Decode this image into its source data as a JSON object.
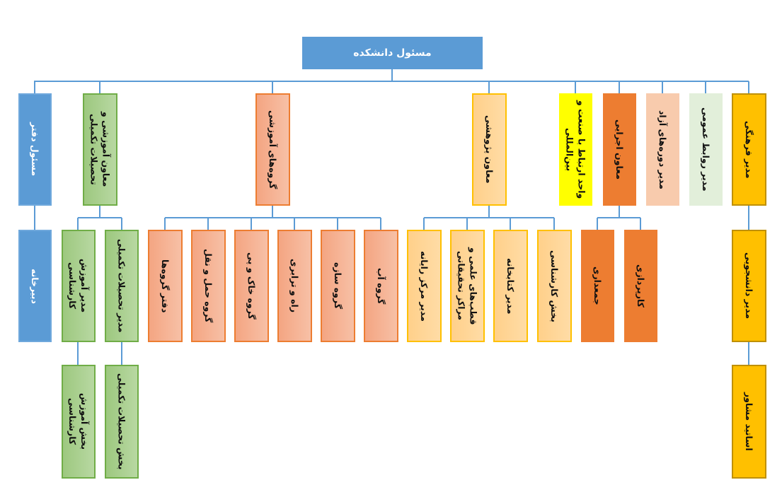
{
  "colors": {
    "blue": "#5B9BD5",
    "green": "#A9D18E",
    "salmon": "#F4B183",
    "light_orange": "#FFD699",
    "yellow": "#FFFF00",
    "orange": "#ED7D31",
    "peach": "#F8CBAD",
    "pale_green": "#E2EFDA",
    "gold": "#FFC000",
    "connector": "#5B9BD5"
  },
  "root": "مسئول دانشکده",
  "level1": {
    "office_head": "مسئول دفتر",
    "edu_deputy": "معاون آموزشی و تحصیلات تکمیلی",
    "edu_groups": "گروه‌های آموزشی",
    "research_deputy": "معاون پژوهشی",
    "industry_unit": "واحد ارتباط با صنعت و بین‌المللی",
    "exec_deputy": "معاون اجرایی",
    "free_courses": "مدیر دوره‌های آزاد",
    "public_relations": "مدیر روابط عمومی",
    "cultural": "مدیر فرهنگی"
  },
  "level2": {
    "secretariat": "دبیرخانه",
    "bsc_edu_manager": "مدیر آموزش کارشناسی",
    "grad_manager": "مدیر تحصیلات تکمیلی",
    "groups_office": "دفتر گروه‌ها",
    "transport_group": "گروه حمل و نقل",
    "geotech_group": "گروه خاک و پی",
    "road_group": "راه و ترابری",
    "structure_group": "گروه سازه",
    "water_group": "گروه آب",
    "computer_center": "مدیر مرکز رایانه",
    "research_centers": "قطب‌های علمی و مراکز تحقیقاتی",
    "library": "مدیر کتابخانه",
    "expert_section": "بخش کارشناسی",
    "property": "جمعداری",
    "procurement": "کارپردازی",
    "student_affairs": "مدیر دانشجویی"
  },
  "level3": {
    "bsc_edu_section": "بخش آموزش کارشناسی",
    "grad_section": "بخش تحصیلات تکمیلی",
    "advisors": "اساتید مشاور"
  }
}
